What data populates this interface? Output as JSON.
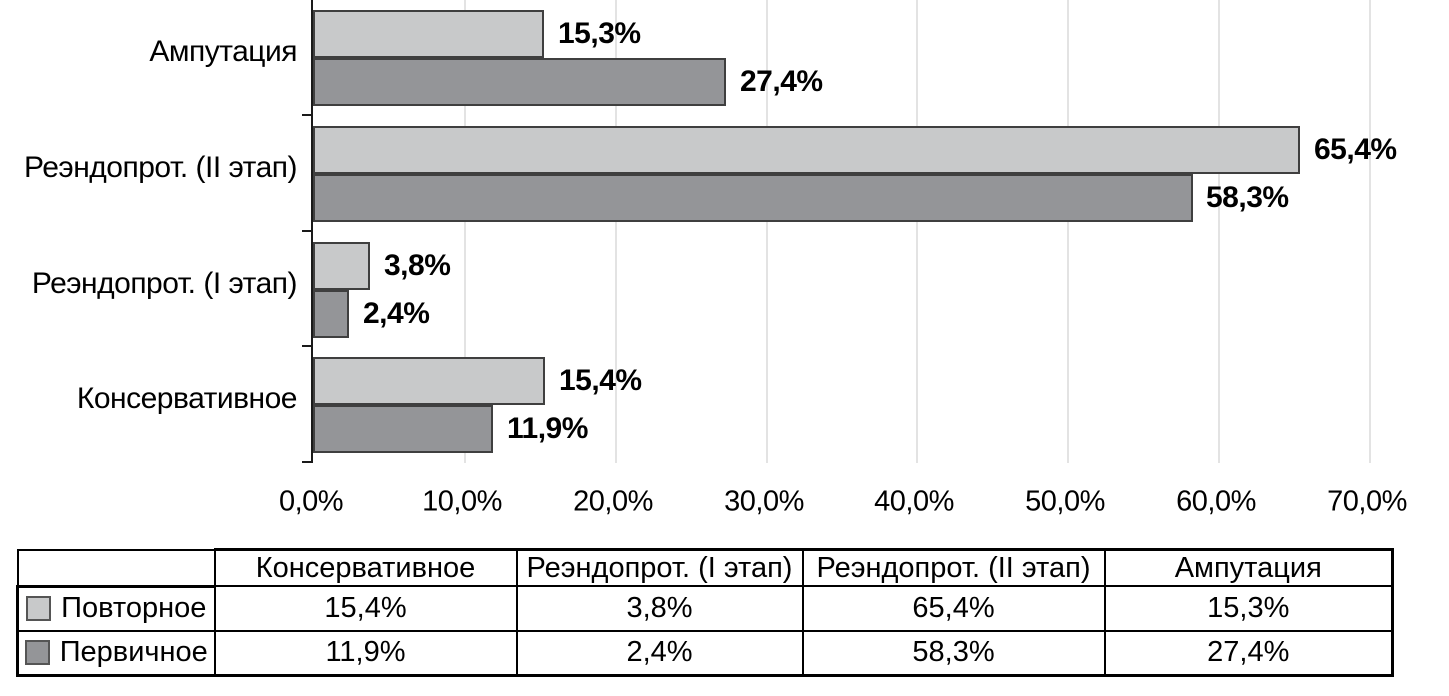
{
  "chart_data": {
    "type": "bar",
    "orientation": "horizontal",
    "title": "",
    "xlabel": "",
    "ylabel": "",
    "grid": true,
    "categories": [
      "Ампутация",
      "Реэндопрот. (II этап)",
      "Реэндопрот. (I этап)",
      "Консервативное"
    ],
    "series": [
      {
        "name": "Повторное",
        "color": "#c8c9ca",
        "values": [
          15.3,
          65.4,
          3.8,
          15.4
        ],
        "labels": [
          "15,3%",
          "65,4%",
          "3,8%",
          "15,4%"
        ]
      },
      {
        "name": "Первичное",
        "color": "#949598",
        "values": [
          27.4,
          58.3,
          2.4,
          11.9
        ],
        "labels": [
          "27,4%",
          "58,3%",
          "2,4%",
          "11,9%"
        ]
      }
    ],
    "x_axis": {
      "min": 0,
      "max": 70,
      "step": 10,
      "ticks": [
        "0,0%",
        "10,0%",
        "20,0%",
        "30,0%",
        "40,0%",
        "50,0%",
        "60,0%",
        "70,0%"
      ]
    },
    "legend_position": "bottom-table"
  },
  "table": {
    "columns": [
      "Консервативное",
      "Реэндопрот. (I этап)",
      "Реэндопрот. (II этап)",
      "Ампутация"
    ],
    "rows": [
      {
        "name": "Повторное",
        "swatch_color": "#c8c9ca",
        "values": [
          "15,4%",
          "3,8%",
          "65,4%",
          "15,3%"
        ]
      },
      {
        "name": "Первичное",
        "swatch_color": "#949598",
        "values": [
          "11,9%",
          "2,4%",
          "58,3%",
          "27,4%"
        ]
      }
    ]
  },
  "colors": {
    "series_light": "#c8c9ca",
    "series_dark": "#949598",
    "bar_border": "#3f3f3f",
    "gridline": "#e3e3e3",
    "axis": "#1a1a1a",
    "table_border": "#000000",
    "background": "#ffffff",
    "text": "#000000"
  }
}
